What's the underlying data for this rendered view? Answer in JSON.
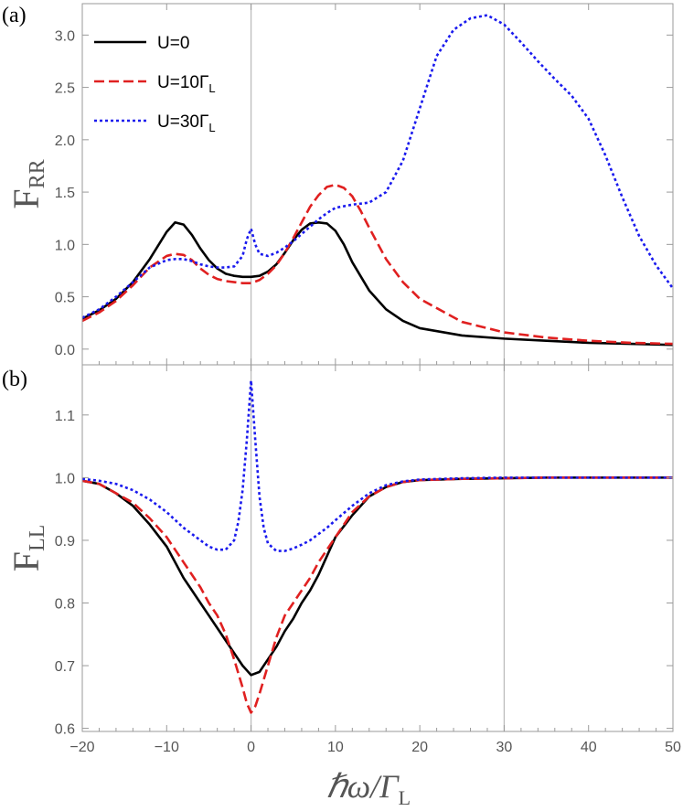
{
  "chart_data": [
    {
      "panel": "a",
      "type": "line",
      "panel_label": "(a)",
      "ylabel_main": "F",
      "ylabel_sub": "RR",
      "xlim": [
        -20,
        50
      ],
      "ylim": [
        -0.15,
        3.3
      ],
      "xticks": [
        -20,
        -10,
        0,
        10,
        20,
        30,
        40,
        50
      ],
      "xticklabels": [
        "",
        "",
        "",
        "",
        "",
        "",
        "",
        ""
      ],
      "yticks": [
        0.0,
        0.5,
        1.0,
        1.5,
        2.0,
        2.5,
        3.0
      ],
      "yticklabels": [
        "0.0",
        "0.5",
        "1.0",
        "1.5",
        "2.0",
        "2.5",
        "3.0"
      ],
      "vlines": [
        0,
        30
      ],
      "legend": {
        "placement": "top-left",
        "entries": [
          {
            "text": "U=0",
            "sub": "",
            "series": 0
          },
          {
            "text": "U=10Γ",
            "sub": "L",
            "series": 1
          },
          {
            "text": "U=30Γ",
            "sub": "L",
            "series": 2
          }
        ]
      },
      "series": [
        {
          "name": "U=0",
          "color": "#000000",
          "dash": "solid",
          "x": [
            -20,
            -18,
            -16,
            -14,
            -12,
            -10,
            -9,
            -8,
            -7,
            -6,
            -5,
            -4,
            -3,
            -2,
            -1,
            0,
            1,
            2,
            3,
            4,
            5,
            6,
            7,
            8,
            9,
            10,
            11,
            12,
            14,
            16,
            18,
            20,
            25,
            30,
            35,
            40,
            45,
            50
          ],
          "y": [
            0.29,
            0.37,
            0.48,
            0.64,
            0.86,
            1.12,
            1.21,
            1.19,
            1.09,
            0.96,
            0.85,
            0.77,
            0.72,
            0.7,
            0.69,
            0.69,
            0.7,
            0.74,
            0.81,
            0.92,
            1.04,
            1.14,
            1.2,
            1.21,
            1.2,
            1.13,
            1.0,
            0.83,
            0.56,
            0.38,
            0.27,
            0.2,
            0.13,
            0.1,
            0.08,
            0.06,
            0.05,
            0.04
          ]
        },
        {
          "name": "U=10Γ_L",
          "color": "#e02020",
          "dash": "dashed",
          "x": [
            -20,
            -18,
            -16,
            -14,
            -12,
            -10,
            -9,
            -8,
            -7,
            -6,
            -5,
            -4,
            -3,
            -2,
            -1,
            0,
            1,
            2,
            3,
            4,
            5,
            6,
            7,
            8,
            9,
            10,
            11,
            12,
            13,
            14,
            16,
            18,
            20,
            25,
            30,
            35,
            40,
            45,
            50
          ],
          "y": [
            0.27,
            0.35,
            0.46,
            0.61,
            0.78,
            0.89,
            0.91,
            0.9,
            0.85,
            0.77,
            0.71,
            0.67,
            0.65,
            0.64,
            0.63,
            0.63,
            0.66,
            0.72,
            0.8,
            0.92,
            1.06,
            1.21,
            1.36,
            1.47,
            1.55,
            1.57,
            1.54,
            1.46,
            1.32,
            1.16,
            0.86,
            0.64,
            0.48,
            0.26,
            0.16,
            0.11,
            0.08,
            0.06,
            0.05
          ]
        },
        {
          "name": "U=30Γ_L",
          "color": "#1a1aee",
          "dash": "dotted",
          "x": [
            -20,
            -18,
            -16,
            -14,
            -12,
            -10,
            -9,
            -8,
            -7,
            -6,
            -5,
            -4,
            -3,
            -2,
            -1,
            -0.5,
            0,
            0.5,
            1,
            2,
            3,
            4,
            5,
            6,
            7,
            8,
            9,
            10,
            12,
            14,
            16,
            18,
            20,
            22,
            24,
            26,
            28,
            30,
            32,
            34,
            36,
            38,
            40,
            42,
            44,
            46,
            48,
            50
          ],
          "y": [
            0.3,
            0.38,
            0.5,
            0.64,
            0.78,
            0.85,
            0.86,
            0.86,
            0.84,
            0.81,
            0.79,
            0.78,
            0.78,
            0.79,
            0.89,
            1.05,
            1.15,
            1.0,
            0.91,
            0.89,
            0.92,
            0.97,
            1.03,
            1.1,
            1.17,
            1.24,
            1.3,
            1.35,
            1.38,
            1.4,
            1.5,
            1.8,
            2.3,
            2.8,
            3.05,
            3.16,
            3.19,
            3.1,
            2.93,
            2.75,
            2.58,
            2.42,
            2.2,
            1.85,
            1.45,
            1.08,
            0.8,
            0.58
          ]
        }
      ]
    },
    {
      "panel": "b",
      "type": "line",
      "panel_label": "(b)",
      "ylabel_main": "F",
      "ylabel_sub": "LL",
      "xlabel_main": "ℏω/Γ",
      "xlabel_sub": "L",
      "xlim": [
        -20,
        50
      ],
      "ylim": [
        0.595,
        1.18
      ],
      "xticks": [
        -20,
        -10,
        0,
        10,
        20,
        30,
        40,
        50
      ],
      "xticklabels": [
        "−20",
        "−10",
        "0",
        "10",
        "20",
        "30",
        "40",
        "50"
      ],
      "yticks": [
        0.6,
        0.7,
        0.8,
        0.9,
        1.0,
        1.1
      ],
      "yticklabels": [
        "0.6",
        "0.7",
        "0.8",
        "0.9",
        "1.0",
        "1.1"
      ],
      "vlines": [
        0,
        30
      ],
      "series": [
        {
          "name": "U=0",
          "color": "#000000",
          "dash": "solid",
          "x": [
            -20,
            -18,
            -16,
            -14,
            -12,
            -10,
            -9,
            -8,
            -7,
            -6,
            -5,
            -4,
            -3,
            -2,
            -1,
            0,
            1,
            2,
            3,
            4,
            5,
            6,
            7,
            8,
            9,
            10,
            12,
            14,
            16,
            18,
            20,
            25,
            30,
            35,
            40,
            45,
            50
          ],
          "y": [
            0.995,
            0.99,
            0.975,
            0.955,
            0.925,
            0.89,
            0.865,
            0.84,
            0.82,
            0.8,
            0.78,
            0.76,
            0.74,
            0.72,
            0.7,
            0.685,
            0.69,
            0.71,
            0.73,
            0.755,
            0.775,
            0.8,
            0.82,
            0.845,
            0.875,
            0.905,
            0.94,
            0.97,
            0.985,
            0.993,
            0.996,
            0.998,
            0.999,
            1.0,
            1.0,
            1.0,
            1.0
          ]
        },
        {
          "name": "U=10Γ_L",
          "color": "#e02020",
          "dash": "dashed",
          "x": [
            -20,
            -18,
            -16,
            -14,
            -12,
            -10,
            -9,
            -8,
            -7,
            -6,
            -5,
            -4,
            -3,
            -2,
            -1,
            -0.5,
            0,
            0.5,
            1,
            2,
            3,
            4,
            5,
            6,
            7,
            8,
            9,
            10,
            12,
            14,
            16,
            18,
            20,
            25,
            30,
            35,
            40,
            45,
            50
          ],
          "y": [
            0.995,
            0.99,
            0.975,
            0.96,
            0.935,
            0.905,
            0.885,
            0.865,
            0.845,
            0.825,
            0.8,
            0.78,
            0.75,
            0.71,
            0.665,
            0.64,
            0.625,
            0.635,
            0.655,
            0.7,
            0.745,
            0.78,
            0.8,
            0.82,
            0.84,
            0.865,
            0.885,
            0.905,
            0.945,
            0.97,
            0.985,
            0.993,
            0.996,
            0.998,
            0.999,
            1.0,
            1.0,
            1.0,
            1.0
          ]
        },
        {
          "name": "U=30Γ_L",
          "color": "#1a1aee",
          "dash": "dotted",
          "x": [
            -20,
            -18,
            -16,
            -14,
            -12,
            -10,
            -8,
            -6,
            -5,
            -4,
            -3,
            -2,
            -1.5,
            -1,
            -0.5,
            0,
            0.5,
            1,
            1.5,
            2,
            3,
            4,
            5,
            6,
            7,
            8,
            9,
            10,
            12,
            14,
            16,
            18,
            20,
            25,
            30,
            35,
            40,
            45,
            50
          ],
          "y": [
            0.998,
            0.995,
            0.99,
            0.98,
            0.965,
            0.945,
            0.92,
            0.9,
            0.89,
            0.885,
            0.885,
            0.9,
            0.93,
            0.98,
            1.06,
            1.155,
            1.06,
            0.97,
            0.92,
            0.895,
            0.883,
            0.883,
            0.887,
            0.893,
            0.9,
            0.91,
            0.92,
            0.932,
            0.955,
            0.975,
            0.988,
            0.994,
            0.997,
            0.999,
            1.0,
            1.0,
            1.0,
            1.0,
            1.0
          ]
        }
      ]
    }
  ]
}
